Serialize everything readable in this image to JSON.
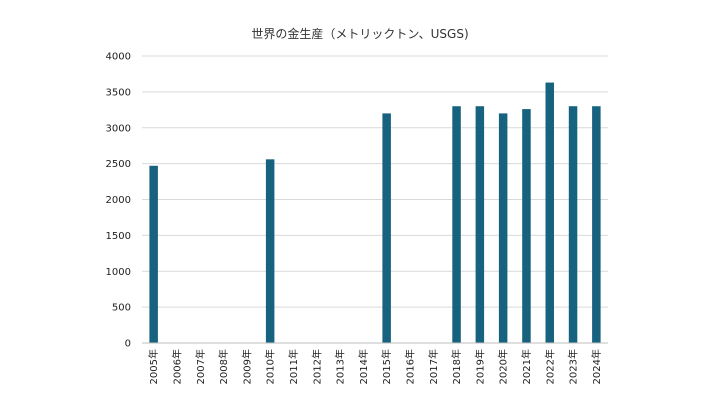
{
  "chart_data": {
    "type": "bar",
    "title": "世界の金生産（メトリックトン、USGS)",
    "xlabel": "",
    "ylabel": "",
    "categories": [
      "2005年",
      "2006年",
      "2007年",
      "2008年",
      "2009年",
      "2010年",
      "2011年",
      "2012年",
      "2013年",
      "2014年",
      "2015年",
      "2016年",
      "2017年",
      "2018年",
      "2019年",
      "2020年",
      "2021年",
      "2022年",
      "2023年",
      "2024年"
    ],
    "values": [
      2470,
      null,
      null,
      null,
      null,
      2560,
      null,
      null,
      null,
      null,
      3200,
      null,
      null,
      3300,
      3300,
      3200,
      3260,
      3630,
      3300,
      3300
    ],
    "ylim": [
      0,
      4000
    ],
    "yticks": [
      "0",
      "500",
      "1000",
      "1500",
      "2000",
      "2500",
      "3000",
      "3500",
      "4000"
    ],
    "bar_color": "#17627f",
    "grid": true,
    "legend": "none"
  }
}
